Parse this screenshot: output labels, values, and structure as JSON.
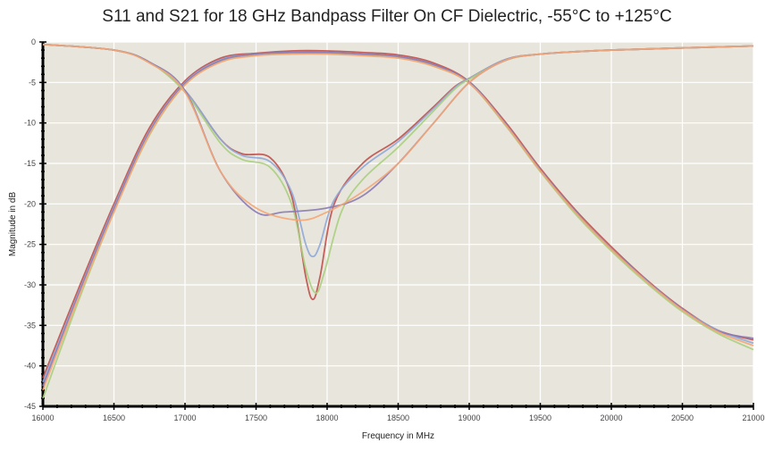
{
  "chart_data": {
    "type": "line",
    "title": "S11 and S21 for 18 GHz Bandpass Filter On CF Dielectric, -55°C to +125°C",
    "xlabel": "Frequency in MHz",
    "ylabel": "Magnitude in dB",
    "xlim": [
      16000,
      21000
    ],
    "ylim": [
      -45,
      0
    ],
    "xticks": [
      16000,
      16500,
      17000,
      17500,
      18000,
      18500,
      19000,
      19500,
      20000,
      20500,
      21000
    ],
    "yticks": [
      0,
      -5,
      -10,
      -15,
      -20,
      -25,
      -30,
      -35,
      -40,
      -45
    ],
    "grid": true,
    "legend": "none",
    "plot_background": "#e8e6dc",
    "series": [
      {
        "color": "#c0504d",
        "x": [
          16000,
          16250,
          16500,
          16750,
          17000,
          17250,
          17500,
          17750,
          18000,
          18250,
          18500,
          18750,
          19000,
          19250,
          19500,
          19750,
          20000,
          20250,
          20500,
          20750,
          21000
        ],
        "y": [
          -41.5,
          -30.5,
          -20,
          -10.6,
          -4.8,
          -2,
          -1.4,
          -1.1,
          -1.1,
          -1.3,
          -1.6,
          -2.6,
          -4.9,
          -9.8,
          -15.6,
          -20.8,
          -25.3,
          -29.4,
          -32.9,
          -35.6,
          -36.8
        ]
      },
      {
        "color": "#8fa8d8",
        "x": [
          16000,
          16250,
          16500,
          16750,
          17000,
          17250,
          17500,
          17750,
          18000,
          18250,
          18500,
          18750,
          19000,
          19250,
          19500,
          19750,
          20000,
          20250,
          20500,
          20750,
          21000
        ],
        "y": [
          -42,
          -31,
          -20.4,
          -11,
          -5,
          -2.2,
          -1.5,
          -1.3,
          -1.3,
          -1.5,
          -1.8,
          -2.8,
          -5,
          -10,
          -15.8,
          -21,
          -25.5,
          -29.5,
          -33,
          -35.6,
          -37.2
        ]
      },
      {
        "color": "#a8cf7e",
        "x": [
          16000,
          16250,
          16500,
          16750,
          17000,
          17250,
          17500,
          17750,
          18000,
          18250,
          18500,
          18750,
          19000,
          19250,
          19500,
          19750,
          20000,
          20250,
          20500,
          20750,
          21000
        ],
        "y": [
          -44,
          -32,
          -21,
          -11.5,
          -5.3,
          -2.4,
          -1.6,
          -1.4,
          -1.4,
          -1.6,
          -1.9,
          -3,
          -5.1,
          -10.2,
          -16,
          -21.3,
          -25.8,
          -29.8,
          -33.3,
          -36,
          -38
        ]
      },
      {
        "color": "#8b7bb5",
        "x": [
          16000,
          16250,
          16500,
          16750,
          17000,
          17250,
          17500,
          17750,
          18000,
          18250,
          18500,
          18750,
          19000,
          19250,
          19500,
          19750,
          20000,
          20250,
          20500,
          20750,
          21000
        ],
        "y": [
          -42.5,
          -31.2,
          -20.6,
          -11.1,
          -5.1,
          -2.3,
          -1.5,
          -1.3,
          -1.3,
          -1.5,
          -1.8,
          -2.8,
          -5,
          -10,
          -15.8,
          -21,
          -25.5,
          -29.5,
          -33,
          -35.7,
          -36.6
        ]
      },
      {
        "color": "#f4a675",
        "x": [
          16000,
          16250,
          16500,
          16750,
          17000,
          17250,
          17500,
          17750,
          18000,
          18250,
          18500,
          18750,
          19000,
          19250,
          19500,
          19750,
          20000,
          20250,
          20500,
          20750,
          21000
        ],
        "y": [
          -43,
          -31.6,
          -21,
          -11.4,
          -5.3,
          -2.5,
          -1.7,
          -1.5,
          -1.5,
          -1.7,
          -2,
          -3,
          -5.1,
          -10.1,
          -15.9,
          -21.1,
          -25.6,
          -29.6,
          -33.1,
          -35.8,
          -37.5
        ]
      },
      {
        "color": "#c0504d",
        "x": [
          16000,
          16500,
          16750,
          17000,
          17250,
          17400,
          17600,
          17750,
          17850,
          17900,
          17950,
          18050,
          18250,
          18500,
          18750,
          18900,
          19000,
          19250,
          19500,
          20000,
          21000
        ],
        "y": [
          -0.3,
          -1,
          -2.5,
          -6,
          -12,
          -13.8,
          -14.3,
          -19,
          -29,
          -31.8,
          -29,
          -20,
          -15,
          -12,
          -8,
          -5.5,
          -4.5,
          -2.2,
          -1.5,
          -1,
          -0.5
        ]
      },
      {
        "color": "#8fa8d8",
        "x": [
          16000,
          16500,
          16750,
          17000,
          17250,
          17400,
          17600,
          17750,
          17850,
          17900,
          17950,
          18050,
          18250,
          18500,
          18750,
          18900,
          19000,
          19250,
          19500,
          20000,
          21000
        ],
        "y": [
          -0.3,
          -1,
          -2.5,
          -6,
          -12,
          -14,
          -14.8,
          -18.5,
          -25,
          -26.5,
          -25,
          -19.5,
          -15.5,
          -12.3,
          -8.2,
          -5.6,
          -4.5,
          -2.2,
          -1.5,
          -1,
          -0.5
        ]
      },
      {
        "color": "#a8cf7e",
        "x": [
          16000,
          16500,
          16750,
          17000,
          17250,
          17400,
          17600,
          17750,
          17850,
          17920,
          17980,
          18100,
          18250,
          18500,
          18750,
          18900,
          19000,
          19250,
          19500,
          20000,
          21000
        ],
        "y": [
          -0.3,
          -1,
          -2.5,
          -6.2,
          -12.5,
          -14.5,
          -15.5,
          -20,
          -28,
          -31,
          -28.5,
          -21,
          -17,
          -13,
          -8.5,
          -5.8,
          -4.6,
          -2.3,
          -1.5,
          -1,
          -0.5
        ]
      },
      {
        "color": "#8b7bb5",
        "x": [
          16000,
          16500,
          16750,
          17000,
          17250,
          17500,
          17700,
          18000,
          18250,
          18500,
          18750,
          19000,
          19250,
          19500,
          20000,
          21000
        ],
        "y": [
          -0.3,
          -1,
          -2.5,
          -6,
          -16,
          -21,
          -21,
          -20.5,
          -19,
          -15,
          -10,
          -5,
          -2.3,
          -1.5,
          -1,
          -0.5
        ]
      },
      {
        "color": "#f4a675",
        "x": [
          16000,
          16500,
          16750,
          17000,
          17250,
          17500,
          17800,
          18000,
          18250,
          18500,
          18750,
          19000,
          19250,
          19500,
          20000,
          21000
        ],
        "y": [
          -0.3,
          -1,
          -2.6,
          -6.2,
          -16,
          -20.5,
          -22,
          -21,
          -18.5,
          -15,
          -10,
          -5,
          -2.3,
          -1.5,
          -1,
          -0.5
        ]
      }
    ]
  }
}
